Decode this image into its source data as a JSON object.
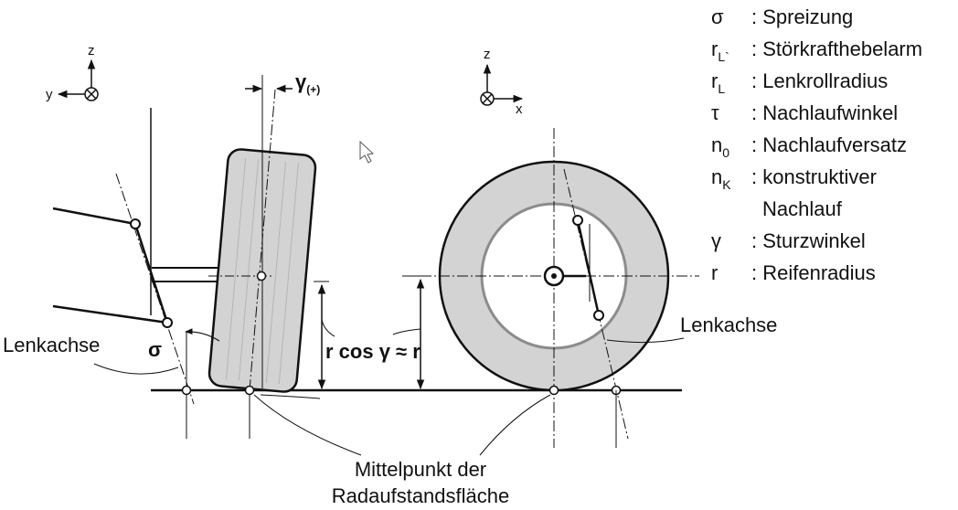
{
  "left_view": {
    "axis_z": "z",
    "axis_y": "y",
    "camber_symbol": "γ",
    "camber_suffix": "(+)",
    "sigma_symbol": "σ",
    "steering_axis_label": "Lenkachse",
    "radius_label": "r cos γ ≈ r"
  },
  "right_view": {
    "axis_z": "z",
    "axis_x": "x",
    "steering_axis_label": "Lenkachse"
  },
  "bottom_caption": {
    "line1": "Mittelpunkt der",
    "line2": "Radaufstandsfläche"
  },
  "legend": {
    "items": [
      {
        "symbol": "σ",
        "sub": "",
        "desc": ": Spreizung"
      },
      {
        "symbol": "r",
        "sub": "L`",
        "desc": ": Störkrafthebelarm"
      },
      {
        "symbol": "r",
        "sub": "L",
        "desc": ": Lenkrollradius"
      },
      {
        "symbol": "τ",
        "sub": "",
        "desc": ": Nachlaufwinkel"
      },
      {
        "symbol": "n",
        "sub": "0",
        "desc": ": Nachlaufversatz"
      },
      {
        "symbol": "n",
        "sub": "K",
        "desc": ": konstruktiver"
      },
      {
        "symbol": "",
        "sub": "",
        "desc": "Nachlauf"
      },
      {
        "symbol": "γ",
        "sub": "",
        "desc": ": Sturzwinkel"
      },
      {
        "symbol": "r",
        "sub": "",
        "desc": ": Reifenradius"
      }
    ]
  },
  "colors": {
    "line": "#111111",
    "tire_fill": "#d3d3d3",
    "rim_stroke": "#8c8c8c",
    "background": "#ffffff"
  }
}
